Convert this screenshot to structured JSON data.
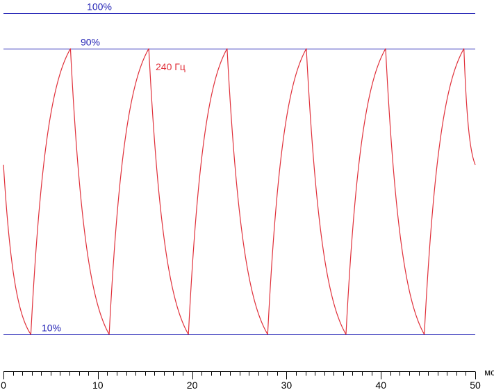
{
  "chart_data": {
    "type": "line",
    "title": "",
    "xlabel": "мс",
    "ylabel": "",
    "xlim": [
      0,
      50
    ],
    "ylim": [
      0,
      108
    ],
    "grid": false,
    "x_ticks": [
      "0",
      "10",
      "20",
      "30",
      "40",
      "50"
    ],
    "reference_lines": [
      {
        "label": "100%",
        "y": 100
      },
      {
        "label": "90%",
        "y": 90
      },
      {
        "label": "10%",
        "y": 10
      }
    ],
    "series": [
      {
        "name": "240 Гц",
        "color": "#e0303a",
        "points": [
          [
            0,
            57.5
          ],
          [
            2.9,
            10
          ],
          [
            7.1,
            90
          ],
          [
            11.2,
            10
          ],
          [
            15.4,
            90
          ],
          [
            19.6,
            10
          ],
          [
            23.7,
            90
          ],
          [
            28,
            10
          ],
          [
            32.1,
            90
          ],
          [
            36.3,
            10
          ],
          [
            40.5,
            90
          ],
          [
            44.6,
            10
          ],
          [
            48.8,
            90
          ],
          [
            50,
            57.5
          ]
        ]
      }
    ]
  },
  "colors": {
    "reference_line": "#1f1fb4",
    "series": "#e0303a",
    "axis": "#000000"
  }
}
